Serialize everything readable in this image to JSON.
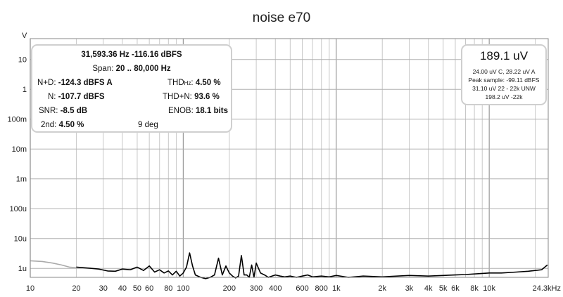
{
  "chart_data": {
    "type": "line",
    "title": "noise e70",
    "ylabel": "V",
    "xscale": "log",
    "yscale": "log",
    "xlim": [
      10,
      24300
    ],
    "ylim": [
      5e-07,
      50
    ],
    "grid": true,
    "x_ticks": [
      {
        "v": 10,
        "label": "10"
      },
      {
        "v": 20,
        "label": "20"
      },
      {
        "v": 30,
        "label": "30"
      },
      {
        "v": 40,
        "label": "40"
      },
      {
        "v": 50,
        "label": "50"
      },
      {
        "v": 60,
        "label": "60"
      },
      {
        "v": 80,
        "label": "80"
      },
      {
        "v": 100,
        "label": "100"
      },
      {
        "v": 200,
        "label": "200"
      },
      {
        "v": 300,
        "label": "300"
      },
      {
        "v": 400,
        "label": "400"
      },
      {
        "v": 600,
        "label": "600"
      },
      {
        "v": 800,
        "label": "800"
      },
      {
        "v": 1000,
        "label": "1k"
      },
      {
        "v": 2000,
        "label": "2k"
      },
      {
        "v": 3000,
        "label": "3k"
      },
      {
        "v": 4000,
        "label": "4k"
      },
      {
        "v": 5000,
        "label": "5k"
      },
      {
        "v": 6000,
        "label": "6k"
      },
      {
        "v": 8000,
        "label": "8k"
      },
      {
        "v": 10000,
        "label": "10k"
      },
      {
        "v": 24300,
        "label": "24.3kHz"
      }
    ],
    "y_ticks": [
      {
        "v": 10,
        "label": "10"
      },
      {
        "v": 1,
        "label": "1"
      },
      {
        "v": 0.1,
        "label": "100m"
      },
      {
        "v": 0.01,
        "label": "10m"
      },
      {
        "v": 0.001,
        "label": "1m"
      },
      {
        "v": 0.0001,
        "label": "100u"
      },
      {
        "v": 1e-05,
        "label": "10u"
      },
      {
        "v": 1e-06,
        "label": "1u"
      }
    ],
    "series": [
      {
        "color": "#aaaaaa",
        "x": [
          10,
          12,
          14,
          16,
          18,
          20
        ],
        "y": [
          1.8e-06,
          1.7e-06,
          1.5e-06,
          1.3e-06,
          1.1e-06,
          1.05e-06
        ]
      },
      {
        "color": "#000000",
        "x": [
          20,
          25,
          28,
          32,
          36,
          40,
          45,
          50,
          55,
          60,
          65,
          70,
          75,
          80,
          85,
          90,
          95,
          100,
          105,
          110,
          115,
          120,
          130,
          140,
          150,
          160,
          170,
          180,
          190,
          200,
          210,
          220,
          230,
          240,
          250,
          260,
          270,
          280,
          290,
          300,
          320,
          340,
          360,
          380,
          400,
          430,
          460,
          500,
          550,
          600,
          650,
          700,
          800,
          900,
          1000,
          1200,
          1500,
          2000,
          2500,
          3000,
          4000,
          5000,
          6000,
          7000,
          8000,
          10000,
          12000,
          15000,
          18000,
          20000,
          22000,
          24000
        ],
        "y": [
          1.1e-06,
          1e-06,
          9.5e-07,
          8.2e-07,
          8e-07,
          9.5e-07,
          9e-07,
          1.1e-06,
          8.5e-07,
          1.2e-06,
          7.5e-07,
          9e-07,
          7e-07,
          8.2e-07,
          6e-07,
          8e-07,
          5.5e-07,
          7e-07,
          1.1e-06,
          3.3e-06,
          1.2e-06,
          6e-07,
          5e-07,
          4.5e-07,
          5e-07,
          6e-07,
          2.2e-06,
          6e-07,
          1.2e-06,
          7e-07,
          5.5e-07,
          4.8e-07,
          5.5e-07,
          2.7e-06,
          6e-07,
          6e-07,
          5e-07,
          1.3e-06,
          5e-07,
          1.5e-06,
          7e-07,
          6e-07,
          5e-07,
          5.5e-07,
          6e-07,
          5.5e-07,
          5.2e-07,
          5.5e-07,
          5e-07,
          5.5e-07,
          6e-07,
          5.2e-07,
          5.5e-07,
          5.2e-07,
          5.8e-07,
          5e-07,
          5.5e-07,
          5.2e-07,
          5.5e-07,
          5.8e-07,
          5.5e-07,
          5.8e-07,
          6e-07,
          6.2e-07,
          6.5e-07,
          7e-07,
          7e-07,
          7.5e-07,
          8e-07,
          8.5e-07,
          9e-07,
          1.3e-06
        ]
      }
    ]
  },
  "stats": {
    "line1": "31,593.36 Hz  -116.16 dBFS",
    "span_label": "Span:",
    "span_value": "20 .. 80,000 Hz",
    "nd_label": "N+D:",
    "nd_value": "-124.3 dBFS A",
    "thd_label": "THD",
    "thd_sub": "Hz",
    "thd_value": "4.50 %",
    "n_label": "N:",
    "n_value": "-107.7 dBFS",
    "thdn_label": "THD+N:",
    "thdn_value": "93.6 %",
    "snr_label": "SNR:",
    "snr_value": "-8.5 dB",
    "enob_label": "ENOB:",
    "enob_value": "18.1 bits",
    "h2_label": "2nd:",
    "h2_value": "4.50 %",
    "phase": "9 deg"
  },
  "level": {
    "main": "189.1 uV",
    "line1": "24.00 uV C, 28.22 uV A",
    "line2": "Peak sample: -99.11 dBFS",
    "line3": "31.10 uV 22 - 22k UNW",
    "line4": "198.2 uV -22k"
  }
}
